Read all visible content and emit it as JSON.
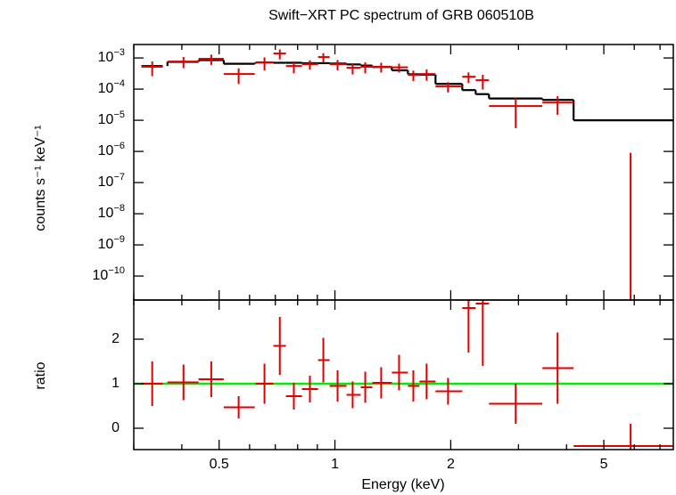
{
  "chart_data": [
    {
      "type": "spectrum",
      "title": "Swift−XRT PC spectrum of GRB 060510B",
      "y_label": "counts s⁻¹ keV⁻¹",
      "log_x": true,
      "log_y": true,
      "x": [
        0.335,
        0.404,
        0.477,
        0.562,
        0.656,
        0.719,
        0.782,
        0.861,
        0.933,
        1.016,
        1.112,
        1.199,
        1.319,
        1.468,
        1.599,
        1.731,
        1.968,
        2.225,
        2.423,
        2.951,
        3.791,
        5.87
      ],
      "x_lo": [
        0.314,
        0.367,
        0.442,
        0.514,
        0.622,
        0.692,
        0.746,
        0.821,
        0.904,
        0.969,
        1.072,
        1.167,
        1.251,
        1.406,
        1.548,
        1.659,
        1.826,
        2.143,
        2.322,
        2.515,
        3.462,
        4.173
      ],
      "x_hi": [
        0.357,
        0.442,
        0.514,
        0.619,
        0.692,
        0.746,
        0.821,
        0.904,
        0.969,
        1.072,
        1.167,
        1.251,
        1.406,
        1.548,
        1.659,
        1.826,
        2.143,
        2.322,
        2.515,
        3.462,
        4.173,
        7.58
      ],
      "values": [
        0.00052,
        0.00077,
        0.00094,
        0.000306,
        0.00072,
        0.00139,
        0.00055,
        0.00063,
        0.00107,
        0.00063,
        0.000485,
        0.00052,
        0.00052,
        0.0005,
        0.000286,
        0.000306,
        0.000122,
        0.00025,
        0.000193,
        2.86e-05,
        3.7e-05,
        -4e-06
      ],
      "errors": [
        0.00026,
        0.0003,
        0.00034,
        0.00016,
        0.00032,
        0.00049,
        0.00023,
        0.00021,
        0.00035,
        0.00023,
        0.00019,
        0.0002,
        0.00018,
        0.00016,
        0.000105,
        0.00012,
        4.4e-05,
        9.3e-05,
        9.6e-05,
        2.3e-05,
        2.2e-05,
        4.9e-06
      ],
      "model": [
        0.00055,
        0.00075,
        0.00085,
        0.00065,
        0.00072,
        0.0007,
        0.0007,
        0.00068,
        0.00068,
        0.00066,
        0.00062,
        0.00057,
        0.00051,
        0.0004,
        0.0003,
        0.00029,
        0.000147,
        9.3e-05,
        6.9e-05,
        5e-05,
        4.5e-05,
        1e-05
      ],
      "color": "#e00000",
      "model_color": "#000000",
      "ylim": [
        1.7e-11,
        0.0027
      ],
      "yticks": [
        {
          "value": 0.001,
          "label": "10−3"
        },
        {
          "value": 0.0001,
          "label": "10−4"
        },
        {
          "value": 1e-05,
          "label": "10−5"
        },
        {
          "value": 1e-06,
          "label": "10−6"
        },
        {
          "value": 1e-07,
          "label": "10−7"
        },
        {
          "value": 1e-08,
          "label": "10−8"
        },
        {
          "value": 1e-09,
          "label": "10−9"
        },
        {
          "value": 1e-10,
          "label": "10−10"
        }
      ]
    },
    {
      "type": "ratio",
      "y_label": "ratio",
      "x_label": "Energy (keV)",
      "values": [
        1.0,
        1.03,
        1.1,
        0.47,
        1.0,
        1.85,
        0.72,
        0.88,
        1.53,
        0.95,
        0.75,
        0.92,
        1.02,
        1.25,
        0.95,
        1.05,
        0.83,
        2.7,
        2.8,
        0.55,
        1.35,
        -0.4
      ],
      "errors": [
        0.5,
        0.4,
        0.4,
        0.25,
        0.45,
        0.65,
        0.3,
        0.3,
        0.5,
        0.35,
        0.3,
        0.35,
        0.35,
        0.4,
        0.35,
        0.4,
        0.3,
        1.0,
        1.4,
        0.45,
        0.8,
        0.5
      ],
      "reference": 1,
      "reference_color": "#00ee00",
      "color": "#e00000",
      "xlim": [
        0.3,
        7.58
      ],
      "xticks": [
        0.5,
        1,
        2,
        5
      ],
      "xticks_minor": [
        0.3,
        0.4,
        0.6,
        0.7,
        0.8,
        0.9,
        3,
        4,
        6,
        7
      ],
      "ylim": [
        -0.48,
        2.88
      ],
      "yticks": [
        0,
        1,
        2
      ]
    }
  ]
}
